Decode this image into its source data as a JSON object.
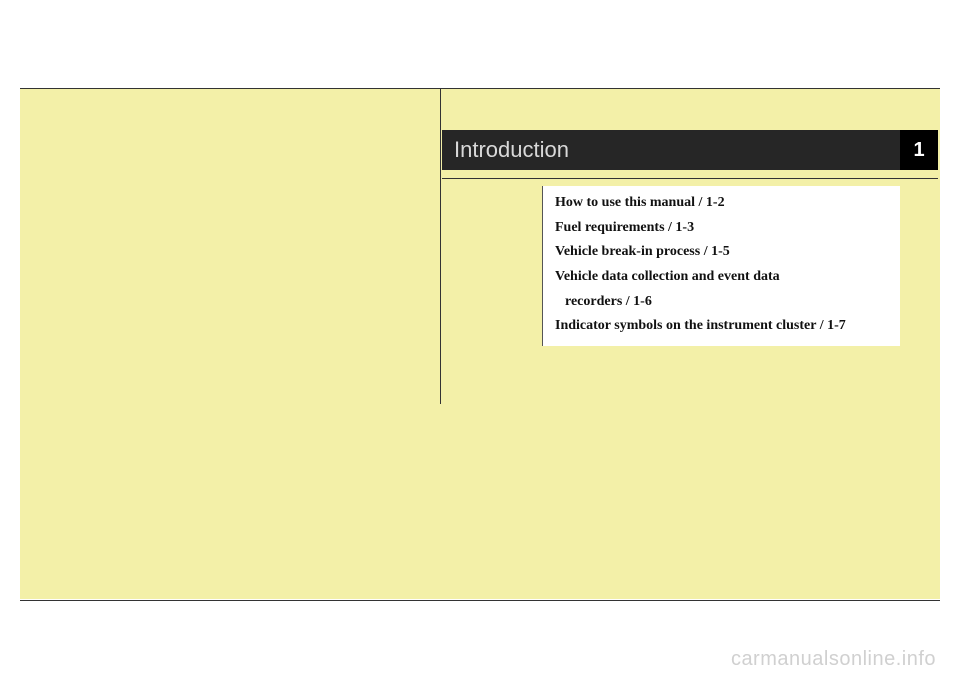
{
  "page": {
    "background_color": "#ffffff",
    "rule_color": "#333333",
    "highlight_color": "#f3f0a8"
  },
  "chapter": {
    "title": "Introduction",
    "number": "1",
    "title_bg": "#262626",
    "title_fg": "#d9d9d9",
    "badge_bg": "#000000",
    "badge_fg": "#ffffff",
    "title_fontsize": 22
  },
  "toc": {
    "items": [
      {
        "label": "How to use this manual / 1-2"
      },
      {
        "label": "Fuel requirements / 1-3"
      },
      {
        "label": "Vehicle break-in process / 1-5"
      },
      {
        "label": "Vehicle data collection and event data"
      },
      {
        "label": "recorders / 1-6",
        "indent": true
      },
      {
        "label": "Indicator symbols on the instrument cluster / 1-7"
      }
    ],
    "bg": "#ffffff",
    "border_color": "#555555",
    "fontsize": 14,
    "fontweight": "bold",
    "text_color": "#111111"
  },
  "watermark": {
    "text": "carmanualsonline.info",
    "color": "#d0d0d0"
  }
}
